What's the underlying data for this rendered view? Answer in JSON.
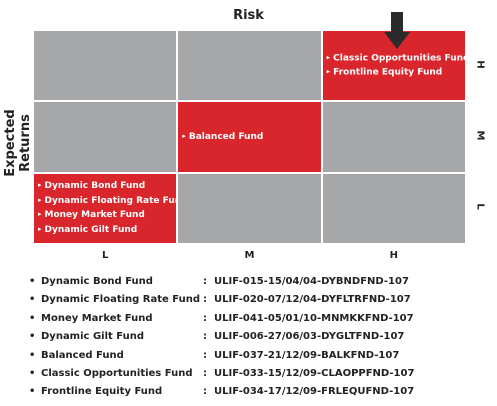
{
  "title": "Risk",
  "y_label": "Expected Returns",
  "columns": [
    "L",
    "M",
    "H"
  ],
  "rows": [
    "H",
    "M",
    "L"
  ],
  "grid": [
    [
      [],
      [],
      [
        "Classic Opportunities Fund",
        "Frontline Equity Fund"
      ]
    ],
    [
      [],
      [
        "Balanced Fund"
      ],
      []
    ],
    [
      [
        "Dynamic Bond Fund",
        "Dynamic Floating Rate Fund",
        "Money Market Fund",
        "Dynamic Gilt Fund"
      ],
      [],
      []
    ]
  ],
  "separator": ":",
  "funds": [
    {
      "name": "Dynamic Bond Fund",
      "code": "ULIF-015-15/04/04-DYBNDFND-107"
    },
    {
      "name": "Dynamic Floating Rate Fund",
      "code": "ULIF-020-07/12/04-DYFLTRFND-107"
    },
    {
      "name": "Money Market Fund",
      "code": "ULIF-041-05/01/10-MNMKKFND-107"
    },
    {
      "name": "Dynamic Gilt Fund",
      "code": "ULIF-006-27/06/03-DYGLTFND-107"
    },
    {
      "name": "Balanced Fund",
      "code": "ULIF-037-21/12/09-BALKFND-107"
    },
    {
      "name": "Classic Opportunities Fund",
      "code": "ULIF-033-15/12/09-CLAOPPFND-107"
    },
    {
      "name": "Frontline Equity Fund",
      "code": "ULIF-034-17/12/09-FRLEQUFND-107"
    }
  ]
}
